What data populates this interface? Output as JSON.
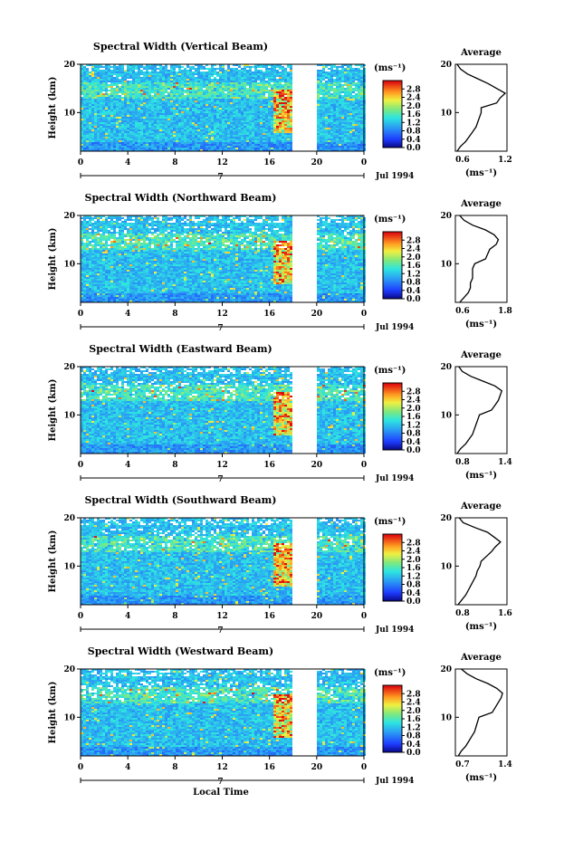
{
  "figure": {
    "x_axis_label": "Local Time",
    "date_label": "Jul 1994",
    "day_marker": "7",
    "colorbar_unit": "(ms⁻¹)",
    "profile_unit": "(ms⁻¹)",
    "profile_title": "Average",
    "y_axis_label": "Height (km)"
  },
  "chart_data": [
    {
      "type": "heatmap",
      "title": "Spectral Width (Vertical Beam)",
      "ylabel": "Height (km)",
      "xticks": [
        "0",
        "4",
        "8",
        "12",
        "16",
        "20",
        "0"
      ],
      "xlim": [
        0,
        24
      ],
      "ylim": [
        2,
        20
      ],
      "yticks": [
        "10",
        "20"
      ],
      "data_gap_hours": [
        17.9,
        19.8
      ],
      "colorbar": {
        "ticks": [
          "0.0",
          "0.4",
          "0.8",
          "1.2",
          "1.6",
          "2.0",
          "2.4",
          "2.8"
        ],
        "range": [
          0,
          3.2
        ]
      },
      "average_profile": {
        "title": "Average",
        "xticks": [
          "0.6",
          "1.2"
        ],
        "xlim": [
          0.6,
          1.2
        ],
        "heights": [
          2,
          3,
          4,
          5,
          6,
          7,
          8,
          9,
          10,
          11,
          12,
          13,
          14,
          15,
          16,
          17,
          18,
          19,
          20
        ],
        "values": [
          0.62,
          0.66,
          0.72,
          0.76,
          0.8,
          0.84,
          0.86,
          0.88,
          0.9,
          0.9,
          1.08,
          1.12,
          1.18,
          1.08,
          0.98,
          0.86,
          0.74,
          0.66,
          0.62
        ]
      }
    },
    {
      "type": "heatmap",
      "title": "Spectral Width (Northward Beam)",
      "ylabel": "Height (km)",
      "xticks": [
        "0",
        "4",
        "8",
        "12",
        "16",
        "20",
        "0"
      ],
      "xlim": [
        0,
        24
      ],
      "ylim": [
        2,
        20
      ],
      "yticks": [
        "10",
        "20"
      ],
      "data_gap_hours": [
        17.9,
        19.8
      ],
      "colorbar": {
        "ticks": [
          "0.0",
          "0.4",
          "0.8",
          "1.2",
          "1.6",
          "2.0",
          "2.4",
          "2.8"
        ],
        "range": [
          0,
          3.2
        ]
      },
      "average_profile": {
        "title": "Average",
        "xticks": [
          "0.6",
          "1.8"
        ],
        "xlim": [
          0.6,
          1.8
        ],
        "heights": [
          2,
          3,
          4,
          5,
          6,
          7,
          8,
          9,
          10,
          11,
          12,
          13,
          14,
          15,
          16,
          17,
          18,
          19,
          20
        ],
        "values": [
          0.7,
          0.8,
          0.9,
          0.95,
          0.95,
          1.0,
          1.0,
          1.0,
          1.05,
          1.3,
          1.35,
          1.4,
          1.55,
          1.6,
          1.5,
          1.3,
          1.0,
          0.8,
          0.7
        ]
      }
    },
    {
      "type": "heatmap",
      "title": "Spectral Width (Eastward Beam)",
      "ylabel": "Height (km)",
      "xticks": [
        "0",
        "4",
        "8",
        "12",
        "16",
        "20",
        "0"
      ],
      "xlim": [
        0,
        24
      ],
      "ylim": [
        2,
        20
      ],
      "yticks": [
        "10",
        "20"
      ],
      "data_gap_hours": [
        17.9,
        19.8
      ],
      "colorbar": {
        "ticks": [
          "0.0",
          "0.4",
          "0.8",
          "1.2",
          "1.6",
          "2.0",
          "2.4",
          "2.8"
        ],
        "range": [
          0,
          3.2
        ]
      },
      "average_profile": {
        "title": "Average",
        "xticks": [
          "0.8",
          "1.4"
        ],
        "xlim": [
          0.8,
          1.4
        ],
        "heights": [
          2,
          3,
          4,
          5,
          6,
          7,
          8,
          9,
          10,
          11,
          12,
          13,
          14,
          15,
          16,
          17,
          18,
          19,
          20
        ],
        "values": [
          0.82,
          0.86,
          0.92,
          0.96,
          1.0,
          1.02,
          1.04,
          1.06,
          1.08,
          1.22,
          1.26,
          1.3,
          1.32,
          1.34,
          1.26,
          1.12,
          0.98,
          0.88,
          0.84
        ]
      }
    },
    {
      "type": "heatmap",
      "title": "Spectral Width (Southward Beam)",
      "ylabel": "Height (km)",
      "xticks": [
        "0",
        "4",
        "8",
        "12",
        "16",
        "20",
        "0"
      ],
      "xlim": [
        0,
        24
      ],
      "ylim": [
        2,
        20
      ],
      "yticks": [
        "10",
        "20"
      ],
      "data_gap_hours": [
        17.9,
        19.8
      ],
      "colorbar": {
        "ticks": [
          "0.0",
          "0.4",
          "0.8",
          "1.2",
          "1.6",
          "2.0",
          "2.4",
          "2.8"
        ],
        "range": [
          0,
          3.2
        ]
      },
      "average_profile": {
        "title": "Average",
        "xticks": [
          "0.8",
          "1.6"
        ],
        "xlim": [
          0.8,
          1.6
        ],
        "heights": [
          2,
          3,
          4,
          5,
          6,
          7,
          8,
          9,
          10,
          11,
          12,
          13,
          14,
          15,
          16,
          17,
          18,
          19,
          20
        ],
        "values": [
          0.84,
          0.9,
          0.96,
          1.0,
          1.04,
          1.08,
          1.12,
          1.14,
          1.18,
          1.2,
          1.28,
          1.36,
          1.42,
          1.5,
          1.4,
          1.3,
          1.1,
          0.92,
          0.86
        ]
      }
    },
    {
      "type": "heatmap",
      "title": "Spectral Width (Westward Beam)",
      "ylabel": "Height (km)",
      "xticks": [
        "0",
        "4",
        "8",
        "12",
        "16",
        "20",
        "0"
      ],
      "xlim": [
        0,
        24
      ],
      "ylim": [
        2,
        20
      ],
      "yticks": [
        "10",
        "20"
      ],
      "data_gap_hours": [
        17.9,
        19.8
      ],
      "colorbar": {
        "ticks": [
          "0.0",
          "0.4",
          "0.8",
          "1.2",
          "1.6",
          "2.0",
          "2.4",
          "2.8"
        ],
        "range": [
          0,
          3.2
        ]
      },
      "average_profile": {
        "title": "Average",
        "xticks": [
          "0.7",
          "1.4"
        ],
        "xlim": [
          0.7,
          1.4
        ],
        "heights": [
          2,
          3,
          4,
          5,
          6,
          7,
          8,
          9,
          10,
          11,
          12,
          13,
          14,
          15,
          16,
          17,
          18,
          19,
          20
        ],
        "values": [
          0.74,
          0.78,
          0.84,
          0.88,
          0.92,
          0.96,
          0.98,
          1.0,
          1.02,
          1.2,
          1.24,
          1.28,
          1.32,
          1.34,
          1.26,
          1.14,
          0.98,
          0.86,
          0.78
        ]
      }
    }
  ]
}
